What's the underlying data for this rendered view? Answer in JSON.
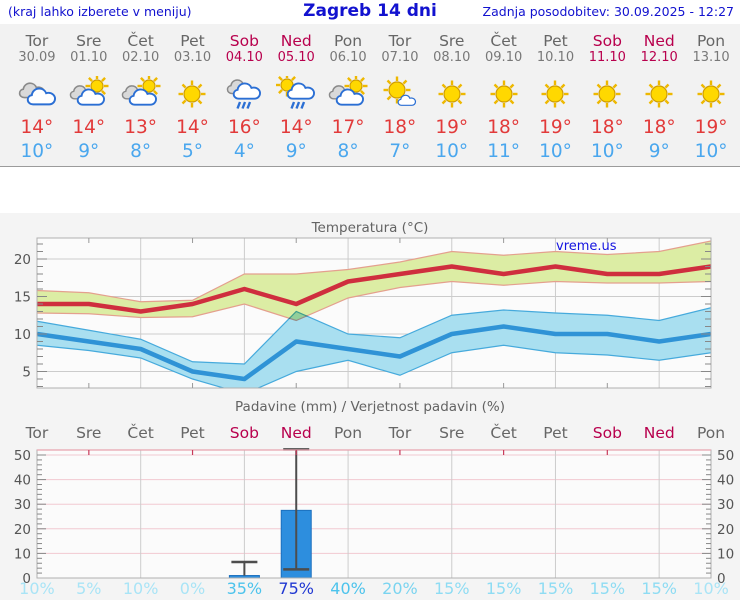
{
  "header": {
    "hint": "(kraj lahko izberete v meniju)",
    "title": "Zagreb 14 dni",
    "updated": "Zadnja posodobitev: 30.09.2025 - 12:27"
  },
  "watermark": "vreme.us",
  "days": [
    {
      "name": "Tor",
      "date": "30.09",
      "weekend": false,
      "icon": "cloudy",
      "tmax": "14°",
      "tmin": "10°",
      "prob": "10%",
      "prob_color": "#a9e4f6"
    },
    {
      "name": "Sre",
      "date": "01.10",
      "weekend": false,
      "icon": "partly",
      "tmax": "14°",
      "tmin": "9°",
      "prob": "5%",
      "prob_color": "#a9e4f6"
    },
    {
      "name": "Čet",
      "date": "02.10",
      "weekend": false,
      "icon": "partly",
      "tmax": "13°",
      "tmin": "8°",
      "prob": "10%",
      "prob_color": "#a9e4f6"
    },
    {
      "name": "Pet",
      "date": "03.10",
      "weekend": false,
      "icon": "sunny",
      "tmax": "14°",
      "tmin": "5°",
      "prob": "0%",
      "prob_color": "#a9e4f6"
    },
    {
      "name": "Sob",
      "date": "04.10",
      "weekend": true,
      "icon": "rain",
      "tmax": "16°",
      "tmin": "4°",
      "prob": "35%",
      "prob_color": "#4cc3ec"
    },
    {
      "name": "Ned",
      "date": "05.10",
      "weekend": true,
      "icon": "sun-rain",
      "tmax": "14°",
      "tmin": "9°",
      "prob": "75%",
      "prob_color": "#2038d2"
    },
    {
      "name": "Pon",
      "date": "06.10",
      "weekend": false,
      "icon": "partly",
      "tmax": "17°",
      "tmin": "8°",
      "prob": "40%",
      "prob_color": "#4cc3ec"
    },
    {
      "name": "Tor",
      "date": "07.10",
      "weekend": false,
      "icon": "sun-small-cloud",
      "tmax": "18°",
      "tmin": "7°",
      "prob": "20%",
      "prob_color": "#7ad4f0"
    },
    {
      "name": "Sre",
      "date": "08.10",
      "weekend": false,
      "icon": "sunny",
      "tmax": "19°",
      "tmin": "10°",
      "prob": "15%",
      "prob_color": "#8edcf3"
    },
    {
      "name": "Čet",
      "date": "09.10",
      "weekend": false,
      "icon": "sunny",
      "tmax": "18°",
      "tmin": "11°",
      "prob": "15%",
      "prob_color": "#8edcf3"
    },
    {
      "name": "Pet",
      "date": "10.10",
      "weekend": false,
      "icon": "sunny",
      "tmax": "19°",
      "tmin": "10°",
      "prob": "15%",
      "prob_color": "#8edcf3"
    },
    {
      "name": "Sob",
      "date": "11.10",
      "weekend": true,
      "icon": "sunny",
      "tmax": "18°",
      "tmin": "10°",
      "prob": "15%",
      "prob_color": "#8edcf3"
    },
    {
      "name": "Ned",
      "date": "12.10",
      "weekend": true,
      "icon": "sunny",
      "tmax": "18°",
      "tmin": "9°",
      "prob": "15%",
      "prob_color": "#8edcf3"
    },
    {
      "name": "Pon",
      "date": "13.10",
      "weekend": false,
      "icon": "sunny",
      "tmax": "19°",
      "tmin": "10°",
      "prob": "10%",
      "prob_color": "#a9e4f6"
    }
  ],
  "chart_data": [
    {
      "type": "line",
      "title": "Temperatura (°C)",
      "categories": [
        "Tor 30.09",
        "Sre 01.10",
        "Čet 02.10",
        "Pet 03.10",
        "Sob 04.10",
        "Ned 05.10",
        "Pon 06.10",
        "Tor 07.10",
        "Sre 08.10",
        "Čet 09.10",
        "Pet 10.10",
        "Sob 11.10",
        "Ned 12.10",
        "Pon 13.10"
      ],
      "ylim": [
        2.7,
        22.8
      ],
      "yticks": [
        5,
        10,
        15,
        20
      ],
      "grid": true,
      "series": [
        {
          "name": "max temperature",
          "color": "#cf2e3e",
          "values": [
            14,
            14,
            13,
            14,
            16,
            14,
            17,
            18,
            19,
            18,
            19,
            18,
            18,
            19
          ],
          "band_hi": [
            15.8,
            15.5,
            14.3,
            14.5,
            18,
            18,
            18.6,
            19.6,
            21,
            20.5,
            21,
            20.6,
            21,
            22.4
          ],
          "band_lo": [
            12.8,
            12.7,
            12.2,
            12.3,
            14,
            11.8,
            14.8,
            16.2,
            17,
            16.5,
            17,
            16.8,
            16.8,
            17
          ],
          "band_fill": "#dceda4",
          "band_edge": "#e4a08e"
        },
        {
          "name": "min temperature",
          "color": "#2f93d6",
          "values": [
            10,
            9,
            8,
            5,
            4,
            9,
            8,
            7,
            10,
            11,
            10,
            10,
            9,
            10
          ],
          "band_hi": [
            11.7,
            10.5,
            9.3,
            6.3,
            6,
            13,
            10,
            9.5,
            12.5,
            13.2,
            12.8,
            12.5,
            11.8,
            13.5
          ],
          "band_lo": [
            8.5,
            7.8,
            6.8,
            4,
            2,
            5,
            6.5,
            4.5,
            7.5,
            8.5,
            7.5,
            7.2,
            6.5,
            7.5
          ],
          "band_fill": "#a9dff0",
          "band_edge": "#46aadc"
        }
      ]
    },
    {
      "type": "bar",
      "title": "Padavine (mm) / Verjetnost padavin (%)",
      "categories": [
        "Tor",
        "Sre",
        "Čet",
        "Pet",
        "Sob",
        "Ned",
        "Pon",
        "Tor",
        "Sre",
        "Čet",
        "Pet",
        "Sob",
        "Ned",
        "Pon"
      ],
      "ylim": [
        0,
        52
      ],
      "yticks": [
        0,
        10,
        20,
        30,
        40,
        50
      ],
      "values": [
        0,
        0,
        0,
        0,
        1,
        27.5,
        0,
        0,
        0,
        0,
        0,
        0,
        0,
        0
      ],
      "whiskers": [
        {
          "day": 4,
          "from": 1,
          "to": 6.5,
          "caps": [
            6.5
          ]
        },
        {
          "day": 5,
          "from": 3.5,
          "to": 52.3,
          "caps": [
            3.5,
            52.3
          ]
        }
      ],
      "bar_color": "#2d8ede",
      "probabilities_pct": [
        10,
        5,
        10,
        0,
        35,
        75,
        40,
        20,
        15,
        15,
        15,
        15,
        15,
        10
      ]
    }
  ],
  "colors": {
    "header_text": "#1212cf",
    "weekend": "#b8004d",
    "tmax_text": "#e23a3a",
    "tmin_text": "#4aa7ee",
    "grid": "#cccccc",
    "precip_grid": "#f2c9d1",
    "precip_top_ticks": "#c73a5a"
  }
}
